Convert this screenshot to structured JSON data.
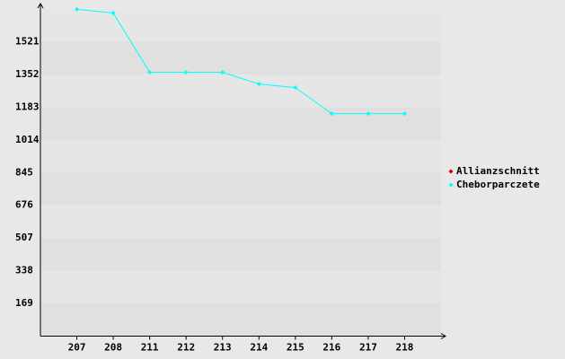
{
  "chart_data": {
    "type": "line",
    "categories": [
      "207",
      "208",
      "211",
      "212",
      "213",
      "214",
      "215",
      "216",
      "217",
      "218"
    ],
    "series": [
      {
        "name": "Allianzschnitt",
        "color": "#cc0000",
        "values": [
          null,
          null,
          null,
          null,
          null,
          null,
          null,
          null,
          null,
          null
        ]
      },
      {
        "name": "Cheborparczete",
        "color": "#00ffff",
        "values": [
          1688,
          1669,
          1363,
          1363,
          1363,
          1302,
          1284,
          1149,
          1149,
          1149
        ]
      }
    ],
    "ylim": [
      0,
      1690
    ],
    "yticks": [
      169,
      338,
      507,
      676,
      845,
      1014,
      1183,
      1352,
      1521
    ],
    "grid": true,
    "legend": "right"
  }
}
